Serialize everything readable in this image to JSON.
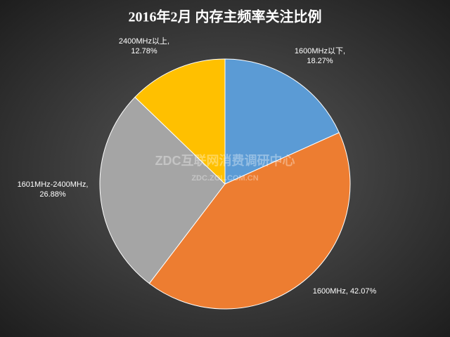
{
  "chart_data": {
    "type": "pie",
    "title": "2016年2月 内存主频率关注比例",
    "values": [
      18.27,
      42.07,
      26.88,
      12.78
    ],
    "value_labels": [
      [
        "1600MHz以下,",
        "18.27%"
      ],
      [
        "1600MHz, 42.07%"
      ],
      [
        "1601MHz-2400MHz,",
        "26.88%"
      ],
      [
        "2400MHz以上,",
        "12.78%"
      ]
    ],
    "colors": [
      "#5b9bd5",
      "#ed7d31",
      "#a5a5a5",
      "#ffc000"
    ],
    "watermark": "ZDC互联网消费调研中心",
    "watermark_url": "ZDC.ZOL.COM.CN"
  }
}
